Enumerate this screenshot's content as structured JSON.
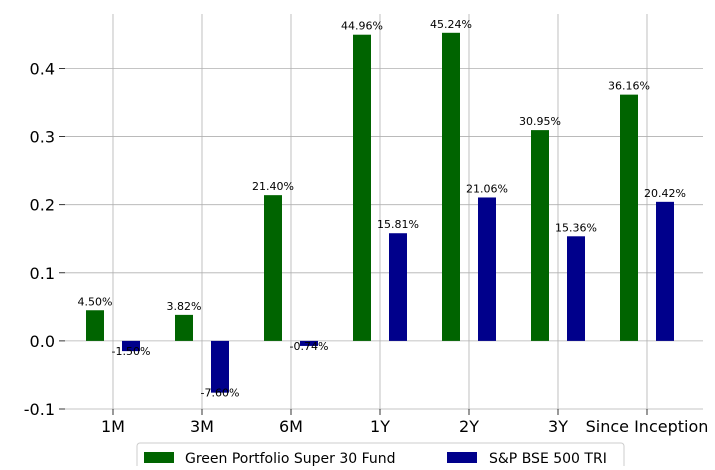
{
  "chart_data": {
    "type": "bar",
    "categories": [
      "1M",
      "3M",
      "6M",
      "1Y",
      "2Y",
      "3Y",
      "Since Inception"
    ],
    "series": [
      {
        "name": "Green Portfolio Super 30 Fund",
        "color": "#006400",
        "values": [
          0.045,
          0.0382,
          0.214,
          0.4496,
          0.4524,
          0.3095,
          0.3616
        ],
        "labels": [
          "4.50%",
          "3.82%",
          "21.40%",
          "44.96%",
          "45.24%",
          "30.95%",
          "36.16%"
        ]
      },
      {
        "name": "S&P BSE 500 TRI",
        "color": "#00008b",
        "values": [
          -0.015,
          -0.076,
          -0.0074,
          0.1581,
          0.2106,
          0.1536,
          0.2042
        ],
        "labels": [
          "-1.50%",
          "-7.60%",
          "-0.74%",
          "15.81%",
          "21.06%",
          "15.36%",
          "20.42%"
        ]
      }
    ],
    "yticks": [
      "-0.1",
      "0.0",
      "0.1",
      "0.2",
      "0.3",
      "0.4"
    ],
    "ylim": [
      -0.1,
      0.48
    ],
    "grid": true,
    "legend_position": "bottom-center"
  }
}
